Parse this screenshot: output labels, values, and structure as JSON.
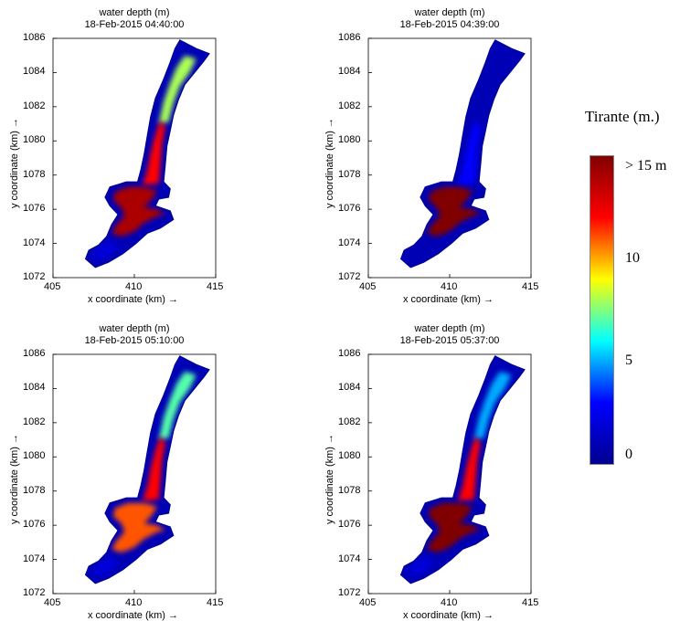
{
  "chart_data": [
    {
      "type": "heatmap",
      "title": "water depth (m)",
      "subtitle": "18-Feb-2015 04:40:00",
      "xlabel": "x coordinate (km) →",
      "ylabel": "y coordinate (km) →",
      "xlim": [
        405,
        415
      ],
      "ylim": [
        1072,
        1086
      ],
      "xticks": [
        "405",
        "410",
        "415"
      ],
      "yticks": [
        "1072",
        "1074",
        "1076",
        "1078",
        "1080",
        "1082",
        "1084",
        "1086"
      ],
      "depth_levels": {
        "lake_basin": 14,
        "river_lower": 12,
        "river_upper": 8,
        "shallows": 2
      }
    },
    {
      "type": "heatmap",
      "title": "water depth (m)",
      "subtitle": "18-Feb-2015 04:39:00",
      "xlabel": "x coordinate (km) →",
      "ylabel": "y coordinate (km) →",
      "xlim": [
        405,
        415
      ],
      "ylim": [
        1072,
        1086
      ],
      "xticks": [
        "405",
        "410",
        "415"
      ],
      "yticks": [
        "1072",
        "1074",
        "1076",
        "1078",
        "1080",
        "1082",
        "1084",
        "1086"
      ],
      "depth_levels": {
        "lake_basin": 15,
        "river_lower": 3,
        "river_upper": 1,
        "shallows": 1
      }
    },
    {
      "type": "heatmap",
      "title": "water depth (m)",
      "subtitle": "18-Feb-2015 05:10:00",
      "xlabel": "x coordinate (km) →",
      "ylabel": "y coordinate (km) →",
      "xlim": [
        405,
        415
      ],
      "ylim": [
        1072,
        1086
      ],
      "xticks": [
        "405",
        "410",
        "415"
      ],
      "yticks": [
        "1072",
        "1074",
        "1076",
        "1078",
        "1080",
        "1082",
        "1084",
        "1086"
      ],
      "depth_levels": {
        "lake_basin": 11,
        "river_lower": 12,
        "river_upper": 7,
        "shallows": 2
      }
    },
    {
      "type": "heatmap",
      "title": "water depth (m)",
      "subtitle": "18-Feb-2015 05:37:00",
      "xlabel": "x coordinate (km) →",
      "ylabel": "y coordinate (km) →",
      "xlim": [
        405,
        415
      ],
      "ylim": [
        1072,
        1086
      ],
      "xticks": [
        "405",
        "410",
        "415"
      ],
      "yticks": [
        "1072",
        "1074",
        "1076",
        "1078",
        "1080",
        "1082",
        "1084",
        "1086"
      ],
      "depth_levels": {
        "lake_basin": 15,
        "river_lower": 12,
        "river_upper": 5,
        "shallows": 2
      }
    }
  ],
  "colorbar": {
    "title": "Tirante (m.)",
    "min": 0,
    "max": 15,
    "ticks": [
      {
        "value": 15,
        "label": "> 15 m"
      },
      {
        "value": 10,
        "label": "10"
      },
      {
        "value": 5,
        "label": "5"
      },
      {
        "value": 0,
        "label": "0"
      }
    ],
    "colors": [
      "#00008f",
      "#0000ff",
      "#00ffff",
      "#ffff00",
      "#ff0000",
      "#800000"
    ]
  }
}
